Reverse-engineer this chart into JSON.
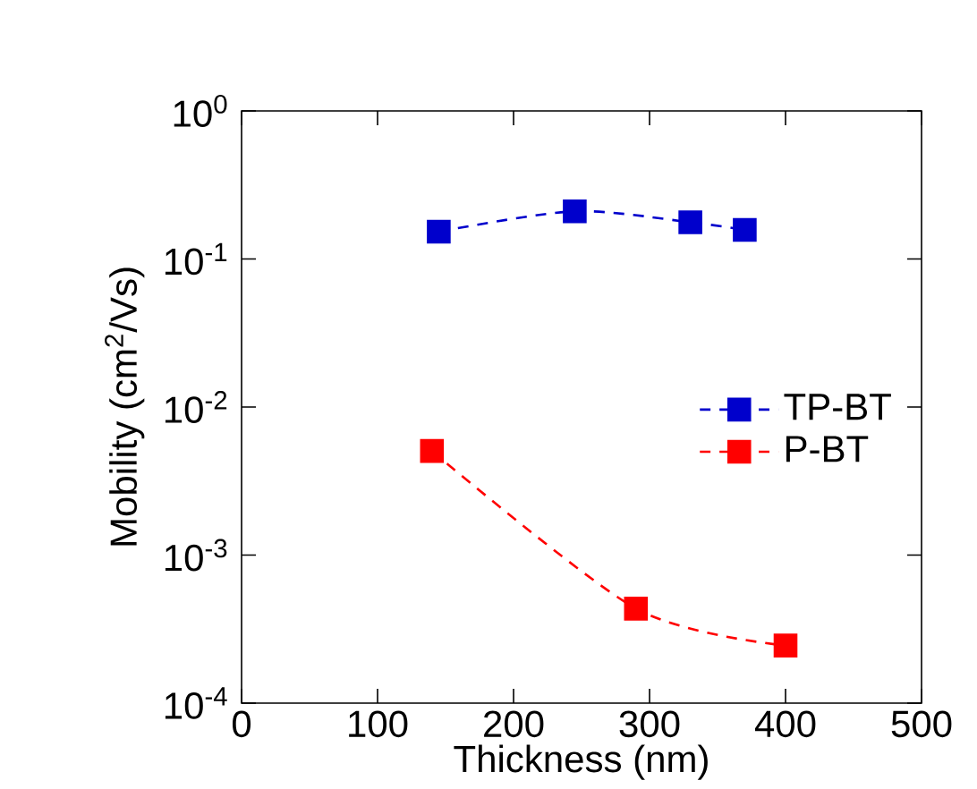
{
  "chart_data": {
    "type": "line",
    "xlabel": "Thickness (nm)",
    "ylabel": "Mobility (cm$^{2}$/Vs)",
    "log": "y",
    "xlim": [
      0,
      500
    ],
    "xticks": [
      0,
      100,
      200,
      300,
      400,
      500
    ],
    "ylim": [
      0.0001,
      1
    ],
    "yticks": [
      {
        "value": 0.0001,
        "label": "10$^{-4}$"
      },
      {
        "value": 0.001,
        "label": "10$^{-3}$"
      },
      {
        "value": 0.01,
        "label": "10$^{-2}$"
      },
      {
        "value": 0.1,
        "label": "10$^{-1}$"
      },
      {
        "value": 1,
        "label": "10$^{0}$"
      }
    ],
    "marker": "square",
    "line_style": "dashed",
    "legend": "right",
    "grid": false,
    "series": [
      {
        "name": "TP-BT",
        "color": "#0000cc",
        "x": [
          145,
          245,
          330,
          370
        ],
        "values": [
          0.153,
          0.21,
          0.177,
          0.157
        ]
      },
      {
        "name": "P-BT",
        "color": "#ff0000",
        "x": [
          140,
          290,
          400
        ],
        "values": [
          0.00505,
          0.000435,
          0.000245
        ]
      }
    ]
  }
}
